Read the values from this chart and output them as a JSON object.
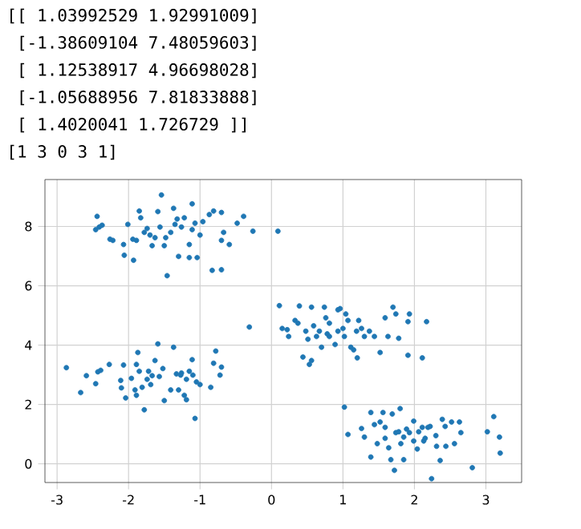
{
  "chart_data": {
    "type": "scatter",
    "annotations": [
      "[[ 1.03992529  1.92991009]",
      " [-1.38609104  7.48059603]",
      " [ 1.12538917  4.96698028]",
      " [-1.05688956  7.81833888]",
      " [ 1.4020041   1.726729  ]]",
      "[1 3 0 3 1]"
    ],
    "xlim": [
      -3.17,
      3.5
    ],
    "ylim": [
      -0.63,
      9.58
    ],
    "xticks": [
      -3,
      -2,
      -1,
      0,
      1,
      2,
      3
    ],
    "yticks": [
      0,
      2,
      4,
      6,
      8
    ],
    "grid": true,
    "series": [
      {
        "color": "#1f77b4",
        "x": [
          -2.44,
          -2.46,
          -2.37,
          -2.41,
          -2.26,
          -2.22,
          -2.07,
          -2.06,
          -2.01,
          -1.93,
          -1.94,
          -1.89,
          -1.85,
          -1.83,
          -1.78,
          -1.74,
          -1.7,
          -1.67,
          -1.59,
          -1.54,
          -1.56,
          -1.48,
          -1.46,
          -1.5,
          -1.41,
          -1.37,
          -1.32,
          -1.3,
          -1.26,
          -1.22,
          -1.15,
          -1.15,
          -1.11,
          -1.07,
          -1.04,
          -1.0,
          -0.96,
          -0.87,
          -0.81,
          -0.83,
          -0.7,
          -0.7,
          -0.67,
          -0.7,
          -0.59,
          -0.48,
          -0.39,
          -0.26,
          0.09,
          -1.63,
          -1.35,
          -1.11,
          -2.87,
          -2.67,
          -2.59,
          -2.46,
          -2.43,
          -2.39,
          -2.27,
          -2.11,
          -2.1,
          -2.07,
          -2.04,
          -1.96,
          -1.91,
          -1.89,
          -1.87,
          -1.85,
          -1.89,
          -1.81,
          -1.78,
          -1.74,
          -1.72,
          -1.67,
          -1.69,
          -1.63,
          -1.59,
          -1.57,
          -1.5,
          -1.52,
          -1.41,
          -1.37,
          -1.33,
          -1.3,
          -1.26,
          -1.22,
          -1.19,
          -1.15,
          -1.11,
          -1.1,
          -1.07,
          -1.05,
          -1.0,
          -0.85,
          -0.81,
          -0.78,
          -0.72,
          -0.7,
          -1.19,
          -1.27,
          -0.31,
          0.11,
          0.15,
          0.22,
          0.24,
          0.33,
          0.37,
          0.39,
          0.44,
          0.48,
          0.51,
          0.53,
          0.56,
          0.56,
          0.59,
          0.63,
          0.67,
          0.7,
          0.74,
          0.76,
          0.78,
          0.81,
          0.89,
          0.93,
          0.96,
          0.93,
          1.0,
          1.02,
          1.04,
          1.07,
          1.11,
          1.15,
          1.19,
          1.2,
          1.22,
          1.3,
          1.37,
          1.44,
          1.52,
          1.59,
          1.63,
          1.7,
          1.74,
          1.78,
          1.91,
          1.91,
          1.93,
          2.11,
          2.17,
          1.26,
          0.81,
          1.02,
          1.07,
          1.26,
          1.3,
          1.39,
          1.39,
          1.44,
          1.48,
          1.52,
          1.56,
          1.59,
          1.64,
          1.67,
          1.69,
          1.72,
          1.74,
          1.78,
          1.8,
          1.81,
          1.85,
          1.85,
          1.89,
          1.99,
          1.99,
          2.04,
          2.06,
          2.11,
          2.13,
          2.15,
          2.19,
          2.22,
          2.24,
          2.3,
          2.31,
          2.36,
          2.39,
          2.43,
          2.44,
          2.52,
          2.56,
          2.63,
          2.65,
          2.81,
          3.02,
          3.11,
          3.19,
          3.2,
          1.93,
          1.59
        ],
        "values": [
          8.34,
          7.89,
          8.04,
          7.98,
          7.57,
          7.53,
          7.39,
          7.03,
          8.07,
          6.86,
          7.57,
          7.53,
          8.52,
          8.29,
          7.8,
          7.93,
          7.71,
          7.35,
          8.5,
          9.06,
          7.98,
          7.62,
          6.34,
          7.35,
          7.8,
          8.61,
          8.25,
          6.99,
          7.98,
          8.29,
          7.39,
          6.95,
          8.76,
          8.11,
          6.95,
          7.71,
          8.16,
          8.4,
          8.52,
          6.52,
          8.47,
          6.54,
          7.8,
          7.53,
          7.39,
          8.11,
          8.34,
          7.84,
          7.84,
          7.62,
          8.07,
          7.89,
          3.24,
          2.4,
          2.97,
          2.7,
          3.1,
          3.15,
          3.35,
          2.81,
          2.56,
          3.33,
          2.22,
          2.88,
          2.49,
          3.35,
          3.75,
          3.12,
          2.31,
          2.58,
          1.82,
          2.85,
          3.12,
          2.97,
          2.67,
          3.48,
          4.04,
          2.94,
          2.13,
          3.21,
          2.49,
          3.93,
          3.03,
          2.49,
          3.06,
          2.31,
          2.85,
          3.12,
          3.51,
          2.99,
          1.53,
          2.76,
          2.67,
          2.58,
          3.39,
          3.8,
          2.99,
          3.26,
          2.16,
          2.99,
          4.61,
          5.33,
          4.56,
          4.52,
          4.29,
          4.83,
          4.74,
          5.32,
          3.6,
          4.47,
          4.2,
          3.35,
          5.28,
          3.48,
          4.65,
          4.29,
          4.47,
          3.93,
          5.28,
          4.92,
          4.38,
          4.74,
          4.02,
          5.19,
          5.23,
          4.47,
          4.56,
          4.29,
          5.05,
          4.83,
          3.93,
          3.84,
          4.47,
          3.57,
          4.83,
          4.29,
          4.47,
          4.29,
          3.75,
          4.92,
          4.29,
          5.28,
          5.05,
          4.23,
          4.79,
          3.66,
          5.05,
          3.57,
          4.79,
          4.56,
          4.29,
          1.91,
          0.99,
          1.19,
          0.9,
          0.23,
          1.73,
          1.32,
          0.68,
          1.41,
          1.73,
          0.86,
          0.54,
          0.14,
          1.68,
          -0.22,
          1.05,
          1.08,
          1.86,
          0.68,
          0.9,
          0.14,
          1.17,
          1.44,
          0.77,
          0.5,
          1.08,
          1.23,
          0.77,
          0.86,
          1.23,
          1.26,
          -0.5,
          0.95,
          0.59,
          0.11,
          1.5,
          1.26,
          0.59,
          1.41,
          0.68,
          1.41,
          1.05,
          -0.13,
          1.08,
          1.59,
          0.9,
          0.36,
          1.05,
          1.23
        ]
      }
    ]
  }
}
